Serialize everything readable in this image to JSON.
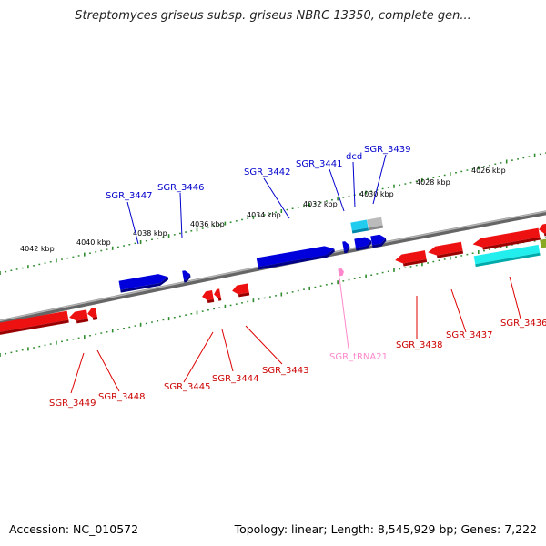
{
  "title": "Streptomyces griseus subsp. griseus NBRC 13350, complete gen...",
  "footer": {
    "accession": "Accession: NC_010572",
    "topology": "Topology: linear; Length: 8,545,929 bp; Genes: 7,222"
  },
  "colors": {
    "backbone": "#7a7a7a",
    "tick": "#2e8b2e",
    "forward_gene": "#0000dd",
    "reverse_gene": "#ee1111",
    "rna": "#ff88cc",
    "cyan_feature": "#22dddd",
    "grey_feature": "#bbbbbb"
  },
  "kbp_labels": [
    "4042 kbp",
    "4040 kbp",
    "4038 kbp",
    "4036 kbp",
    "4034 kbp",
    "4032 kbp",
    "4030 kbp",
    "4028 kbp",
    "4026 kbp"
  ],
  "forward_genes": [
    {
      "label": "SGR_3447"
    },
    {
      "label": "SGR_3446"
    },
    {
      "label": "SGR_3442"
    },
    {
      "label": "SGR_3441"
    },
    {
      "label": "dcd"
    },
    {
      "label": "SGR_3439"
    }
  ],
  "reverse_genes": [
    {
      "label": "SGR_3449"
    },
    {
      "label": "SGR_3448"
    },
    {
      "label": "SGR_3445"
    },
    {
      "label": "SGR_3444"
    },
    {
      "label": "SGR_3443"
    },
    {
      "label": "SGR_3438"
    },
    {
      "label": "SGR_3437"
    },
    {
      "label": "SGR_3436"
    }
  ],
  "rna_genes": [
    {
      "label": "SGR_tRNA21"
    }
  ]
}
